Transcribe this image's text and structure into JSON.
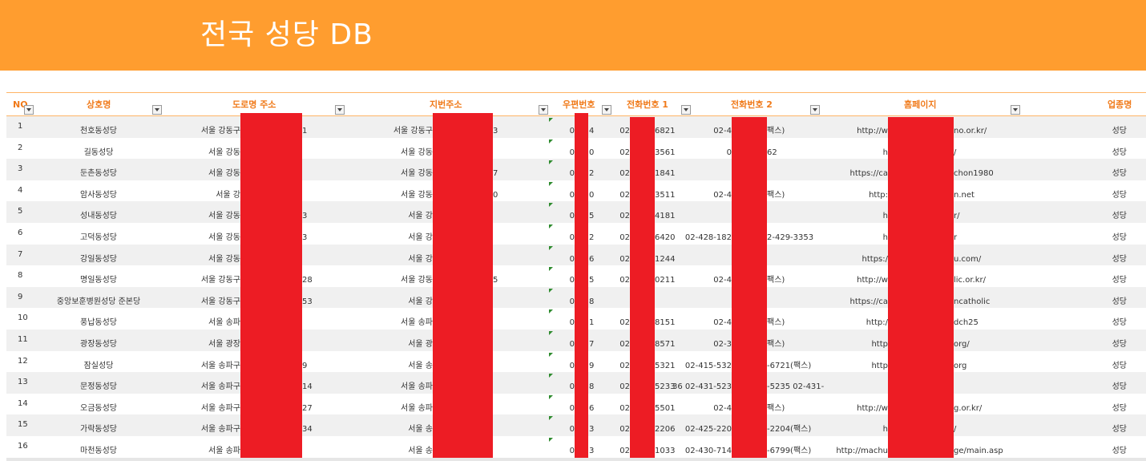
{
  "title": "전국 성당 DB",
  "columns": [
    "NO",
    "상호명",
    "도로명 주소",
    "지번주소",
    "우편번호",
    "전화번호 1",
    "전화번호 2",
    "홈페이지",
    "업종명"
  ],
  "rows": [
    {
      "no": "1",
      "name": "천호동성당",
      "road": "서울 강동구",
      "road_tail": "1",
      "jibun": "서울 강동구",
      "jibun_tail": "3",
      "zip_a": "0",
      "zip_b": "4",
      "tel1_a": "02",
      "tel1_b": "6821",
      "tel2_a": "02-4",
      "tel2_b": "팩스)",
      "web_a": "http://w",
      "web_b": "no.or.kr/",
      "biz": "성당"
    },
    {
      "no": "2",
      "name": "길동성당",
      "road": "서울 강동",
      "road_tail": "",
      "jibun": "서울 강동",
      "jibun_tail": "",
      "zip_a": "0",
      "zip_b": "0",
      "tel1_a": "02",
      "tel1_b": "3561",
      "tel2_a": "0",
      "tel2_b": "62",
      "web_a": "h",
      "web_b": "/",
      "biz": "성당"
    },
    {
      "no": "3",
      "name": "둔촌동성당",
      "road": "서울 강동",
      "road_tail": "",
      "jibun": "서울 강동",
      "jibun_tail": "7",
      "zip_a": "0",
      "zip_b": "2",
      "tel1_a": "02",
      "tel1_b": "1841",
      "tel2_a": "",
      "tel2_b": "",
      "web_a": "https://ca",
      "web_b": "chon1980",
      "biz": "성당"
    },
    {
      "no": "4",
      "name": "암사동성당",
      "road": "서울 강",
      "road_tail": "",
      "jibun": "서울 강동",
      "jibun_tail": "0",
      "zip_a": "0",
      "zip_b": "0",
      "tel1_a": "02",
      "tel1_b": "3511",
      "tel2_a": "02-4",
      "tel2_b": "팩스)",
      "web_a": "http:",
      "web_b": "n.net",
      "biz": "성당"
    },
    {
      "no": "5",
      "name": "성내동성당",
      "road": "서울 강동",
      "road_tail": "3",
      "jibun": "서울 강",
      "jibun_tail": "",
      "zip_a": "0",
      "zip_b": "5",
      "tel1_a": "02",
      "tel1_b": "4181",
      "tel2_a": "",
      "tel2_b": "",
      "web_a": "h",
      "web_b": "r/",
      "biz": "성당"
    },
    {
      "no": "6",
      "name": "고덕동성당",
      "road": "서울 강동",
      "road_tail": "3",
      "jibun": "서울 강",
      "jibun_tail": "",
      "zip_a": "0",
      "zip_b": "2",
      "tel1_a": "02",
      "tel1_b": "6420",
      "tel2_a": "02-428-182",
      "tel2_b": "2-429-3353",
      "web_a": "h",
      "web_b": "r",
      "biz": "성당"
    },
    {
      "no": "7",
      "name": "강일동성당",
      "road": "서울 강동",
      "road_tail": "",
      "jibun": "서울 강",
      "jibun_tail": "",
      "zip_a": "0",
      "zip_b": "6",
      "tel1_a": "02",
      "tel1_b": "1244",
      "tel2_a": "",
      "tel2_b": "",
      "web_a": "https:/",
      "web_b": "u.com/",
      "biz": "성당"
    },
    {
      "no": "8",
      "name": "명일동성당",
      "road": "서울 강동구",
      "road_tail": "28",
      "jibun": "서울 강동",
      "jibun_tail": "5",
      "zip_a": "0",
      "zip_b": "5",
      "tel1_a": "02",
      "tel1_b": "0211",
      "tel2_a": "02-4",
      "tel2_b": "팩스)",
      "web_a": "http://w",
      "web_b": "lic.or.kr/",
      "biz": "성당"
    },
    {
      "no": "9",
      "name": "중앙보훈병원성당 준본당",
      "road": "서울 강동구",
      "road_tail": "53",
      "jibun": "서울 강",
      "jibun_tail": "",
      "zip_a": "0",
      "zip_b": "8",
      "tel1_a": "",
      "tel1_b": "",
      "tel2_a": "",
      "tel2_b": "",
      "web_a": "https://ca",
      "web_b": "ncatholic",
      "biz": "성당"
    },
    {
      "no": "10",
      "name": "풍납동성당",
      "road": "서울 송파",
      "road_tail": "",
      "jibun": "서울 송파",
      "jibun_tail": "",
      "zip_a": "0",
      "zip_b": "1",
      "tel1_a": "02",
      "tel1_b": "8151",
      "tel2_a": "02-4",
      "tel2_b": "팩스)",
      "web_a": "http:/",
      "web_b": "dch25",
      "biz": "성당"
    },
    {
      "no": "11",
      "name": "광장동성당",
      "road": "서울 광장",
      "road_tail": "",
      "jibun": "서울 광",
      "jibun_tail": "",
      "zip_a": "0",
      "zip_b": "7",
      "tel1_a": "02",
      "tel1_b": "8571",
      "tel2_a": "02-3",
      "tel2_b": "팩스)",
      "web_a": "http",
      "web_b": "org/",
      "biz": "성당"
    },
    {
      "no": "12",
      "name": "잠실성당",
      "road": "서울 송파구",
      "road_tail": "9",
      "jibun": "서울 송",
      "jibun_tail": "",
      "zip_a": "0",
      "zip_b": "9",
      "tel1_a": "02",
      "tel1_b": "5321",
      "tel2_a": "02-415-532",
      "tel2_b": "-6721(팩스)",
      "web_a": "http",
      "web_b": "org",
      "biz": "성당"
    },
    {
      "no": "13",
      "name": "문정동성당",
      "road": "서울 송파구",
      "road_tail": "14",
      "jibun": "서울 송파",
      "jibun_tail": "",
      "zip_a": "0",
      "zip_b": "8",
      "tel1_a": "02",
      "tel1_b": "5233",
      "tel2_a": "36 02-431-523",
      "tel2_b": "-5235 02-431-",
      "web_a": "",
      "web_b": "",
      "biz": "성당"
    },
    {
      "no": "14",
      "name": "오금동성당",
      "road": "서울 송파구",
      "road_tail": "27",
      "jibun": "서울 송파",
      "jibun_tail": "",
      "zip_a": "0",
      "zip_b": "6",
      "tel1_a": "02",
      "tel1_b": "5501",
      "tel2_a": "02-4",
      "tel2_b": "팩스)",
      "web_a": "http://w",
      "web_b": "g.or.kr/",
      "biz": "성당"
    },
    {
      "no": "15",
      "name": "가락동성당",
      "road": "서울 송파구",
      "road_tail": "34",
      "jibun": "서울 송",
      "jibun_tail": "",
      "zip_a": "0",
      "zip_b": "3",
      "tel1_a": "02",
      "tel1_b": "2206",
      "tel2_a": "02-425-220",
      "tel2_b": "-2204(팩스)",
      "web_a": "h",
      "web_b": "/",
      "biz": "성당"
    },
    {
      "no": "16",
      "name": "마천동성당",
      "road": "서울 송파",
      "road_tail": "",
      "jibun": "서울 송",
      "jibun_tail": "",
      "zip_a": "0",
      "zip_b": "3",
      "tel1_a": "02",
      "tel1_b": "1033",
      "tel2_a": "02-430-714",
      "tel2_b": "-6799(팩스)",
      "web_a": "http://machu",
      "web_b": "ge/main.asp",
      "biz": "성당"
    }
  ],
  "colors": {
    "banner": "#FF9D2F",
    "header_text": "#F07A1A",
    "redaction": "#ED1C24",
    "row_alt": "#F0F0F0"
  }
}
